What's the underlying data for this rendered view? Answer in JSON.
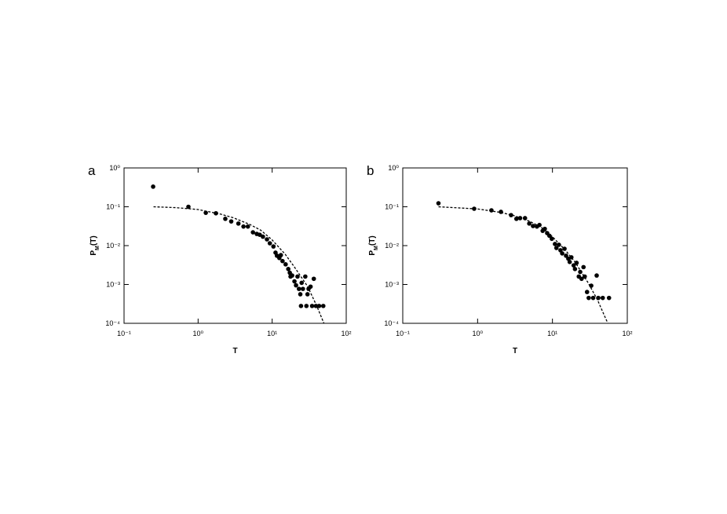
{
  "chart_data": [
    {
      "type": "scatter",
      "panel_label": "a",
      "xlabel": "T",
      "ylabel": [
        "P",
        "M",
        "(T)"
      ],
      "log_x": true,
      "log_y": true,
      "xlim": [
        0.1,
        100
      ],
      "ylim": [
        0.0001,
        1
      ],
      "xticks": [
        {
          "value": 0.1,
          "label": "10⁻¹"
        },
        {
          "value": 1,
          "label": "10⁰"
        },
        {
          "value": 10,
          "label": "10¹"
        },
        {
          "value": 100,
          "label": "10²"
        }
      ],
      "yticks": [
        {
          "value": 0.0001,
          "label": "10⁻⁴"
        },
        {
          "value": 0.001,
          "label": "10⁻³"
        },
        {
          "value": 0.01,
          "label": "10⁻²"
        },
        {
          "value": 0.1,
          "label": "10⁻¹"
        },
        {
          "value": 1,
          "label": "10⁰"
        }
      ],
      "series": [
        {
          "style": "points",
          "color": "#000000",
          "x": [
            0.247,
            0.74,
            1.27,
            1.74,
            2.33,
            2.8,
            3.5,
            4.1,
            4.7,
            5.5,
            6.2,
            6.8,
            7.5,
            8.5,
            9.3,
            10.4,
            11.1,
            11.6,
            12.5,
            13.1,
            13.8,
            15.2,
            16.5,
            17.3,
            17.7,
            18.6,
            20,
            21,
            22,
            23,
            24,
            25,
            26,
            28,
            30,
            31,
            33,
            36.5,
            24.5,
            29,
            34.6,
            39,
            43,
            49
          ],
          "values": [
            0.33,
            0.1,
            0.07,
            0.068,
            0.049,
            0.042,
            0.037,
            0.031,
            0.031,
            0.022,
            0.02,
            0.019,
            0.017,
            0.0145,
            0.0115,
            0.0095,
            0.0066,
            0.0055,
            0.0048,
            0.0057,
            0.004,
            0.0033,
            0.0025,
            0.002,
            0.0016,
            0.0017,
            0.0012,
            0.00095,
            0.0016,
            0.00077,
            0.00056,
            0.0011,
            0.00077,
            0.0016,
            0.00056,
            0.00077,
            0.00088,
            0.0014,
            0.00028,
            0.00028,
            0.00028,
            0.00028,
            0.00028,
            0.00028
          ]
        },
        {
          "style": "dashed",
          "color": "#000000",
          "x": [
            0.25,
            0.5,
            1,
            2,
            3,
            5,
            7,
            10,
            15,
            20,
            30,
            40,
            50
          ],
          "values": [
            0.1,
            0.095,
            0.085,
            0.065,
            0.052,
            0.035,
            0.025,
            0.014,
            0.006,
            0.0028,
            0.0009,
            0.00028,
            0.0001
          ]
        }
      ]
    },
    {
      "type": "scatter",
      "panel_label": "b",
      "xlabel": "T",
      "ylabel": [
        "P",
        "M",
        "(T)"
      ],
      "log_x": true,
      "log_y": true,
      "xlim": [
        0.1,
        100
      ],
      "ylim": [
        0.0001,
        1
      ],
      "xticks": [
        {
          "value": 0.1,
          "label": "10⁻¹"
        },
        {
          "value": 1,
          "label": "10⁰"
        },
        {
          "value": 10,
          "label": "10¹"
        },
        {
          "value": 100,
          "label": "10²"
        }
      ],
      "yticks": [
        {
          "value": 0.0001,
          "label": "10⁻⁴"
        },
        {
          "value": 0.001,
          "label": "10⁻³"
        },
        {
          "value": 0.01,
          "label": "10⁻²"
        },
        {
          "value": 0.1,
          "label": "10⁻¹"
        },
        {
          "value": 1,
          "label": "10⁰"
        }
      ],
      "series": [
        {
          "style": "points",
          "color": "#000000",
          "x": [
            0.3,
            0.9,
            1.53,
            2.05,
            2.8,
            3.3,
            3.7,
            4.3,
            4.9,
            5.5,
            6.2,
            6.7,
            7.4,
            7.9,
            8.5,
            9.1,
            9.8,
            10.8,
            11.3,
            12.2,
            12.8,
            13.5,
            14.5,
            15.2,
            16.3,
            17,
            17.9,
            19.2,
            20,
            21,
            22.5,
            23.5,
            24.5,
            26,
            27,
            29,
            30.5,
            33,
            35,
            39,
            41,
            47,
            57
          ],
          "values": [
            0.123,
            0.089,
            0.081,
            0.074,
            0.061,
            0.049,
            0.051,
            0.051,
            0.037,
            0.032,
            0.031,
            0.034,
            0.024,
            0.027,
            0.021,
            0.018,
            0.015,
            0.011,
            0.0087,
            0.0105,
            0.0076,
            0.0063,
            0.0083,
            0.0055,
            0.0046,
            0.0038,
            0.005,
            0.0031,
            0.0025,
            0.0036,
            0.0016,
            0.0021,
            0.0014,
            0.0028,
            0.0016,
            0.00064,
            0.00045,
            0.00093,
            0.00045,
            0.0017,
            0.00045,
            0.00045,
            0.00045
          ]
        },
        {
          "style": "dashed",
          "color": "#000000",
          "x": [
            0.3,
            1,
            2,
            3,
            5,
            7,
            10,
            15,
            20,
            30,
            40,
            50,
            55
          ],
          "values": [
            0.1,
            0.088,
            0.072,
            0.06,
            0.042,
            0.03,
            0.017,
            0.0075,
            0.0038,
            0.0011,
            0.0004,
            0.00015,
            0.0001
          ]
        }
      ]
    }
  ]
}
